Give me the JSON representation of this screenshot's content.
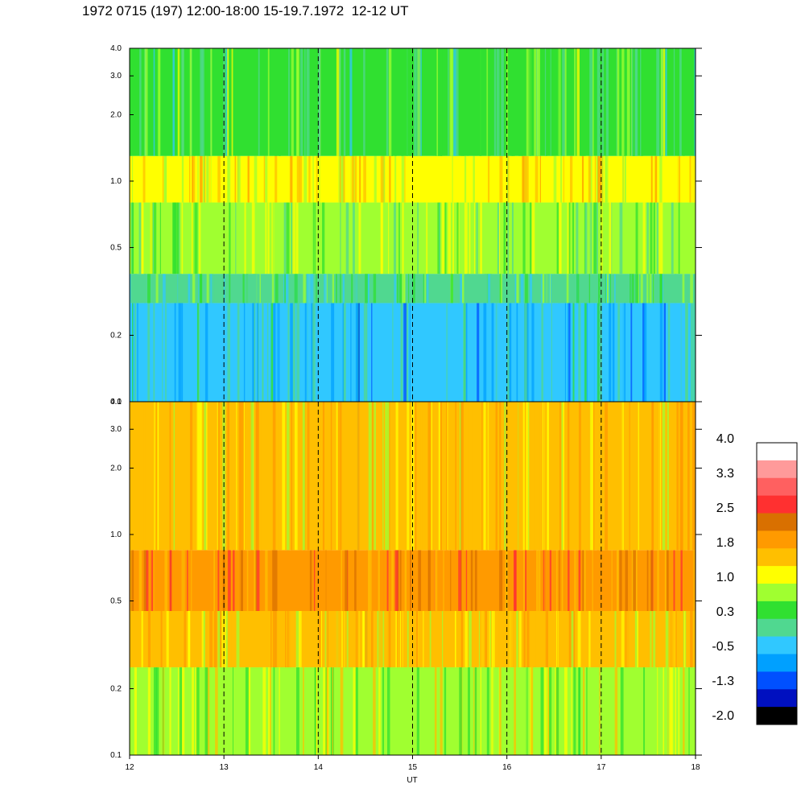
{
  "title": "1972 0715 (197) 12:00-18:00 15-19.7.1972  12-12 UT",
  "chart_data": [
    {
      "type": "heatmap",
      "panel": "top",
      "x_range": [
        12,
        18
      ],
      "y_scale": "log",
      "y_range": [
        0.1,
        4.0
      ],
      "y_ticks": [
        "4.0",
        "3.0",
        "2.0",
        "1.0",
        "0.5",
        "0.2",
        "0.1"
      ],
      "y_tick_values": [
        4.0,
        3.0,
        2.0,
        1.0,
        0.5,
        0.2,
        0.1
      ],
      "dashed_gridlines_x": [
        13,
        14,
        15,
        16,
        17
      ],
      "bands": [
        {
          "from": 0.1,
          "to": 0.28,
          "level": -0.4
        },
        {
          "from": 0.28,
          "to": 0.38,
          "level": 0.2
        },
        {
          "from": 0.38,
          "to": 0.8,
          "level": 0.7
        },
        {
          "from": 0.8,
          "to": 1.3,
          "level": 1.3
        },
        {
          "from": 1.3,
          "to": 4.0,
          "level": 0.4
        }
      ]
    },
    {
      "type": "heatmap",
      "panel": "bottom",
      "x_range": [
        12,
        18
      ],
      "xlabel": "UT",
      "x_ticks": [
        "12",
        "13",
        "14",
        "15",
        "16",
        "17",
        "18"
      ],
      "x_tick_values": [
        12,
        13,
        14,
        15,
        16,
        17,
        18
      ],
      "y_scale": "log",
      "y_range": [
        0.1,
        4.0
      ],
      "y_ticks": [
        "4.0",
        "3.0",
        "2.0",
        "1.0",
        "0.5",
        "0.2",
        "0.1"
      ],
      "y_tick_values": [
        4.0,
        3.0,
        2.0,
        1.0,
        0.5,
        0.2,
        0.1
      ],
      "dashed_gridlines_x": [
        13,
        14,
        15,
        16,
        17
      ],
      "bands": [
        {
          "from": 0.1,
          "to": 0.25,
          "level": 0.9
        },
        {
          "from": 0.25,
          "to": 0.45,
          "level": 1.5
        },
        {
          "from": 0.45,
          "to": 0.85,
          "level": 2.1
        },
        {
          "from": 0.85,
          "to": 4.0,
          "level": 1.5
        }
      ]
    }
  ],
  "colorbar": {
    "labels": [
      "4.0",
      "3.3",
      "2.5",
      "1.8",
      "1.0",
      "0.3",
      "-0.5",
      "-1.3",
      "-2.0"
    ],
    "colors_top_to_bottom": [
      "#ffffff",
      "#ff9a9a",
      "#ff6060",
      "#ff3030",
      "#d97000",
      "#ff9a00",
      "#ffbf00",
      "#ffff00",
      "#a0ff30",
      "#30e030",
      "#50d890",
      "#30c8ff",
      "#00a0ff",
      "#0050ff",
      "#0010c0",
      "#000000"
    ]
  }
}
